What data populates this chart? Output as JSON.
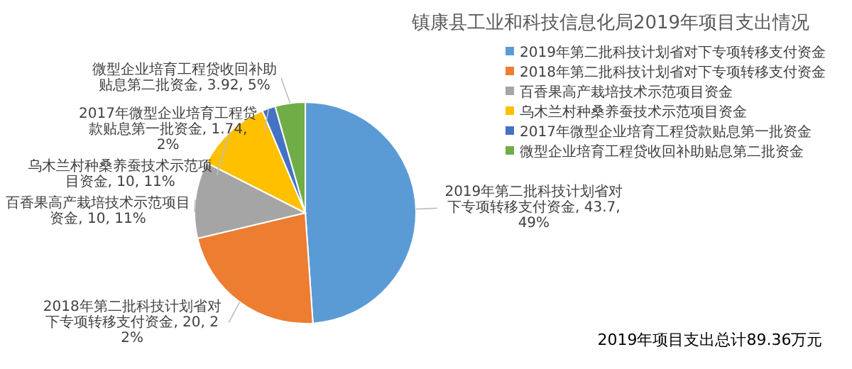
{
  "chart_data": {
    "type": "pie",
    "title": "镇康县工业和科技信息化局2019年项目支出情况",
    "categories": [
      "2019年第二批科技计划省对下专项转移支付资金",
      "2018年第二批科技计划省对下专项转移支付资金",
      "百香果高产栽培技术示范项目资金",
      "乌木兰村种桑养蚕技术示范项目资金",
      "2017年微型企业培育工程贷款贴息第一批资金",
      "微型企业培育工程贷收回补助贴息第二批资金"
    ],
    "values": [
      43.7,
      20,
      10,
      10,
      1.74,
      3.92
    ],
    "colors": [
      "#5b9bd5",
      "#ed7d31",
      "#a5a5a5",
      "#ffc000",
      "#4472c4",
      "#70ad47"
    ],
    "value_labels": [
      ", 43.7, 49%",
      ", 20, 22%",
      ", 10, 11%",
      ", 10, 11%",
      ", 1.74, 2%",
      ", 3.92, 5%"
    ],
    "legend": "right",
    "annotations": [
      "2019年项目支出总计89.36万元"
    ]
  }
}
